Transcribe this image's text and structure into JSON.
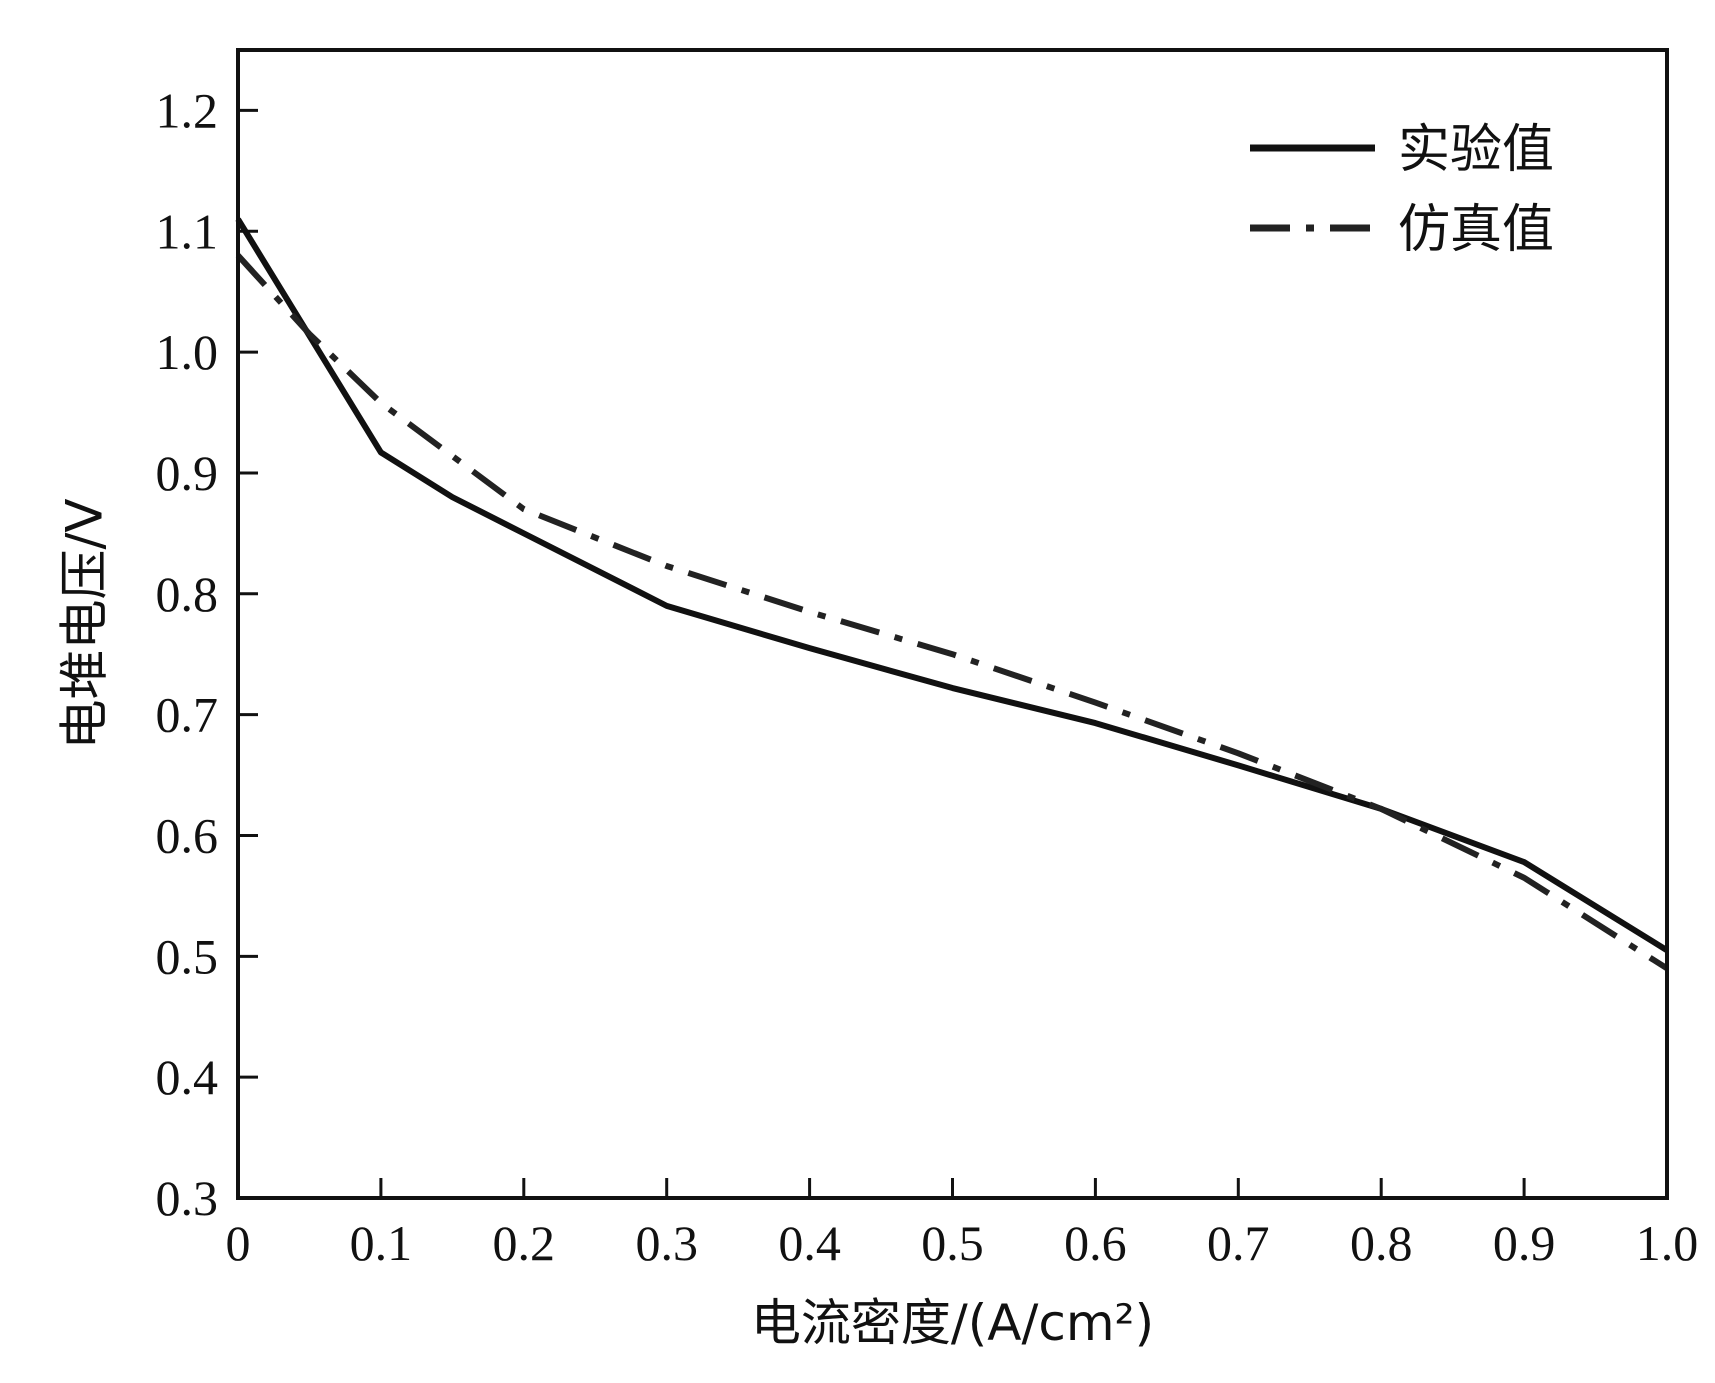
{
  "chart_data": {
    "type": "line",
    "title": "",
    "xlabel": "电流密度/(A/cm²)",
    "ylabel": "电堆电压/V",
    "xlim": [
      0,
      1.0
    ],
    "ylim": [
      0.3,
      1.25
    ],
    "x_ticks": [
      0,
      0.1,
      0.2,
      0.3,
      0.4,
      0.5,
      0.6,
      0.7,
      0.8,
      0.9,
      1.0
    ],
    "x_tick_labels": [
      "0",
      "0.1",
      "0.2",
      "0.3",
      "0.4",
      "0.5",
      "0.6",
      "0.7",
      "0.8",
      "0.9",
      "1.0"
    ],
    "y_ticks": [
      0.3,
      0.4,
      0.5,
      0.6,
      0.7,
      0.8,
      0.9,
      1.0,
      1.1,
      1.2
    ],
    "y_tick_labels": [
      "0.3",
      "0.4",
      "0.5",
      "0.6",
      "0.7",
      "0.8",
      "0.9",
      "1.0",
      "1.1",
      "1.2"
    ],
    "grid": false,
    "legend_position": "top-right",
    "series": [
      {
        "name": "实验值",
        "style": "solid",
        "color": "#111111",
        "x": [
          0,
          0.1,
          0.15,
          0.2,
          0.3,
          0.4,
          0.5,
          0.6,
          0.7,
          0.8,
          0.9,
          1.0
        ],
        "y": [
          1.11,
          0.917,
          0.88,
          0.85,
          0.79,
          0.755,
          0.722,
          0.693,
          0.658,
          0.622,
          0.578,
          0.505
        ]
      },
      {
        "name": "仿真值",
        "style": "dashdot",
        "color": "#222222",
        "x": [
          0,
          0.05,
          0.1,
          0.2,
          0.3,
          0.4,
          0.5,
          0.6,
          0.7,
          0.8,
          0.9,
          1.0
        ],
        "y": [
          1.08,
          1.015,
          0.958,
          0.87,
          0.823,
          0.785,
          0.75,
          0.71,
          0.668,
          0.622,
          0.565,
          0.49
        ]
      }
    ]
  }
}
